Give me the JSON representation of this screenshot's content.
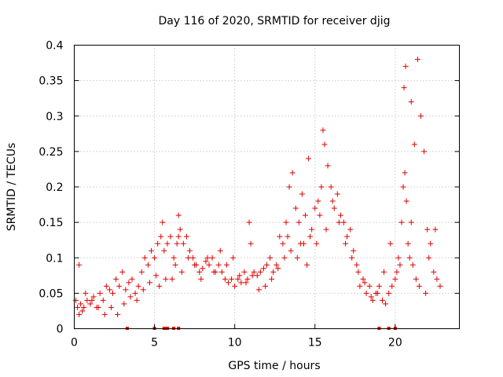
{
  "chart_data": {
    "type": "scatter",
    "title": "Day 116 of 2020, SRMTID for receiver djig",
    "xlabel": "GPS time / hours",
    "ylabel": "SRMTID / TECUs",
    "xlim": [
      0,
      24
    ],
    "ylim": [
      0,
      0.4
    ],
    "xticks": [
      0,
      5,
      10,
      15,
      20
    ],
    "xtick_labels": [
      "0",
      "5",
      "10",
      "15",
      "20"
    ],
    "yticks": [
      0,
      0.05,
      0.1,
      0.15,
      0.2,
      0.25,
      0.3,
      0.35,
      0.4
    ],
    "ytick_labels": [
      "0",
      "0.05",
      "0.1",
      "0.15",
      "0.2",
      "0.25",
      "0.3",
      "0.35",
      "0.4"
    ],
    "grid": true,
    "marker": "plus",
    "color": "#e00000",
    "series": [
      {
        "name": "SRMTID",
        "x": [
          0.1,
          0.2,
          0.3,
          0.4,
          0.5,
          0.6,
          0.8,
          1.0,
          1.2,
          1.4,
          1.6,
          1.8,
          2.0,
          2.2,
          2.4,
          2.6,
          2.8,
          3.0,
          3.2,
          3.4,
          3.6,
          3.8,
          4.0,
          4.2,
          4.4,
          4.6,
          4.8,
          5.0,
          5.2,
          5.4,
          5.5,
          5.6,
          5.8,
          6.0,
          6.2,
          6.4,
          6.5,
          6.6,
          6.8,
          7.0,
          7.2,
          7.4,
          7.6,
          7.8,
          8.0,
          8.2,
          8.4,
          8.6,
          8.8,
          9.0,
          9.2,
          9.4,
          9.6,
          9.8,
          10.0,
          10.2,
          10.4,
          10.6,
          10.8,
          11.0,
          11.2,
          11.4,
          11.6,
          11.8,
          12.0,
          12.2,
          12.4,
          12.6,
          12.8,
          13.0,
          13.2,
          13.4,
          13.6,
          13.8,
          14.0,
          14.2,
          14.4,
          14.6,
          14.8,
          15.0,
          15.2,
          15.4,
          15.5,
          15.6,
          15.8,
          16.0,
          16.2,
          16.4,
          16.6,
          16.8,
          17.0,
          17.2,
          17.4,
          17.6,
          17.8,
          18.0,
          18.2,
          18.4,
          18.6,
          18.8,
          19.0,
          19.2,
          19.4,
          19.6,
          19.8,
          20.0,
          20.1,
          20.2,
          20.4,
          20.5,
          20.6,
          20.7,
          20.8,
          21.0,
          21.2,
          21.4,
          21.6,
          21.8,
          22.0,
          22.2,
          22.4,
          22.6,
          22.8,
          0.3,
          0.7,
          1.1,
          1.5,
          1.9,
          2.3,
          2.7,
          3.1,
          3.5,
          3.9,
          4.3,
          4.7,
          5.1,
          5.3,
          5.7,
          6.1,
          6.3,
          6.7,
          7.1,
          7.5,
          7.9,
          8.3,
          8.7,
          9.1,
          9.5,
          9.9,
          10.3,
          10.7,
          11.1,
          11.5,
          11.9,
          12.3,
          12.7,
          13.1,
          13.5,
          13.9,
          14.3,
          14.7,
          15.1,
          15.3,
          15.7,
          16.1,
          16.5,
          16.9,
          17.3,
          17.7,
          18.1,
          18.5,
          18.9,
          19.3,
          19.7,
          20.3,
          20.9,
          21.1,
          21.3,
          21.5,
          21.9,
          22.1,
          22.5,
          13.3,
          14.1,
          14.5,
          10.9,
          6.5,
          20.65,
          20.55,
          21.0
        ],
        "y": [
          0.04,
          0.03,
          0.02,
          0.035,
          0.025,
          0.03,
          0.04,
          0.035,
          0.045,
          0.03,
          0.05,
          0.04,
          0.06,
          0.055,
          0.05,
          0.07,
          0.06,
          0.08,
          0.055,
          0.065,
          0.07,
          0.05,
          0.06,
          0.08,
          0.1,
          0.09,
          0.11,
          0.1,
          0.12,
          0.13,
          0.15,
          0.11,
          0.12,
          0.13,
          0.1,
          0.12,
          0.16,
          0.14,
          0.12,
          0.13,
          0.11,
          0.1,
          0.09,
          0.08,
          0.085,
          0.095,
          0.09,
          0.1,
          0.08,
          0.09,
          0.08,
          0.07,
          0.065,
          0.07,
          0.06,
          0.07,
          0.065,
          0.08,
          0.07,
          0.12,
          0.08,
          0.075,
          0.08,
          0.085,
          0.09,
          0.1,
          0.08,
          0.09,
          0.13,
          0.12,
          0.15,
          0.2,
          0.22,
          0.17,
          0.15,
          0.19,
          0.16,
          0.24,
          0.14,
          0.17,
          0.18,
          0.2,
          0.28,
          0.26,
          0.23,
          0.2,
          0.17,
          0.19,
          0.16,
          0.15,
          0.13,
          0.14,
          0.11,
          0.09,
          0.06,
          0.07,
          0.05,
          0.06,
          0.04,
          0.05,
          0.06,
          0.04,
          0.035,
          0.05,
          0.06,
          0.07,
          0.08,
          0.1,
          0.15,
          0.2,
          0.22,
          0.18,
          0.12,
          0.15,
          0.26,
          0.38,
          0.3,
          0.25,
          0.14,
          0.12,
          0.08,
          0.07,
          0.06,
          0.09,
          0.05,
          0.04,
          0.03,
          0.02,
          0.03,
          0.02,
          0.035,
          0.045,
          0.04,
          0.055,
          0.065,
          0.075,
          0.06,
          0.07,
          0.07,
          0.09,
          0.08,
          0.1,
          0.09,
          0.07,
          0.1,
          0.08,
          0.11,
          0.09,
          0.1,
          0.075,
          0.065,
          0.075,
          0.055,
          0.06,
          0.07,
          0.085,
          0.1,
          0.11,
          0.1,
          0.12,
          0.13,
          0.12,
          0.16,
          0.14,
          0.18,
          0.15,
          0.12,
          0.1,
          0.08,
          0.065,
          0.045,
          0.05,
          0.08,
          0.12,
          0.09,
          0.1,
          0.09,
          0.07,
          0.06,
          0.05,
          0.1,
          0.14,
          0.13,
          0.12,
          0.09,
          0.15,
          0.13,
          0.37,
          0.34,
          0.32
        ]
      }
    ],
    "rug_ticks": [
      3.3,
      5.0,
      5.6,
      5.8,
      6.2,
      6.5,
      19.0,
      19.6,
      20.0
    ]
  }
}
